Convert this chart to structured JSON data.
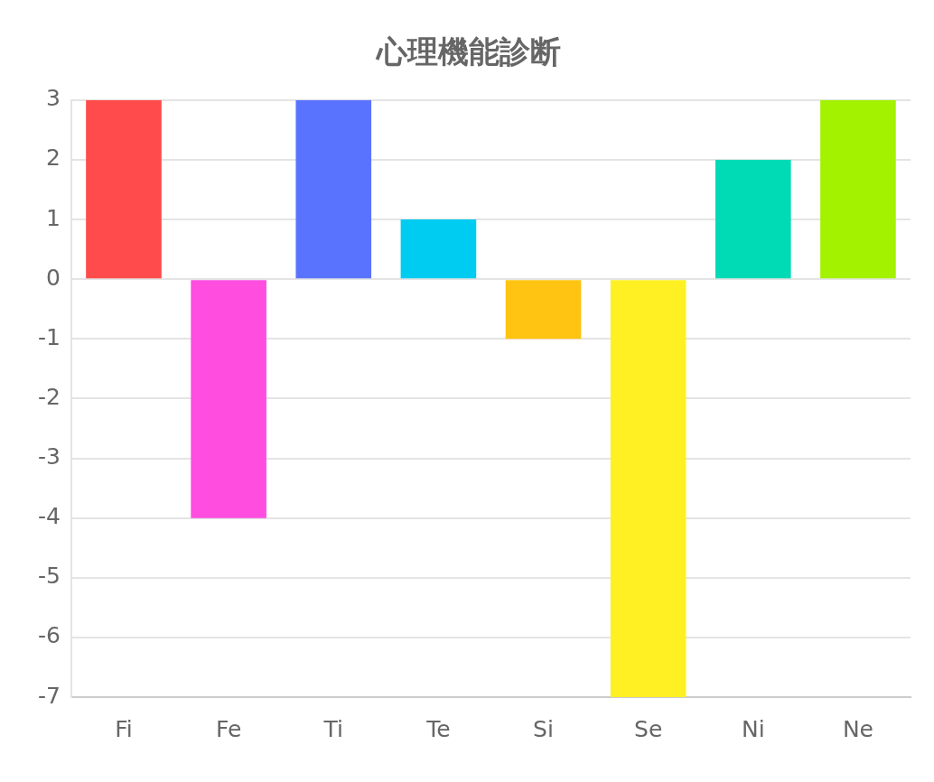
{
  "chart_data": {
    "type": "bar",
    "title": "心理機能診断",
    "categories": [
      "Fi",
      "Fe",
      "Ti",
      "Te",
      "Si",
      "Se",
      "Ni",
      "Ne"
    ],
    "values": [
      3,
      -4,
      3,
      1,
      -1,
      -7,
      2,
      3
    ],
    "colors": [
      "#ff4b4b",
      "#ff4de0",
      "#5a73ff",
      "#00ccf2",
      "#ffc311",
      "#fff023",
      "#00dab5",
      "#a3f200"
    ],
    "ylim": [
      -7,
      3
    ],
    "yticks": [
      -7,
      -6,
      -5,
      -4,
      -3,
      -2,
      -1,
      0,
      1,
      2,
      3
    ],
    "grid": "y",
    "legend": false
  }
}
